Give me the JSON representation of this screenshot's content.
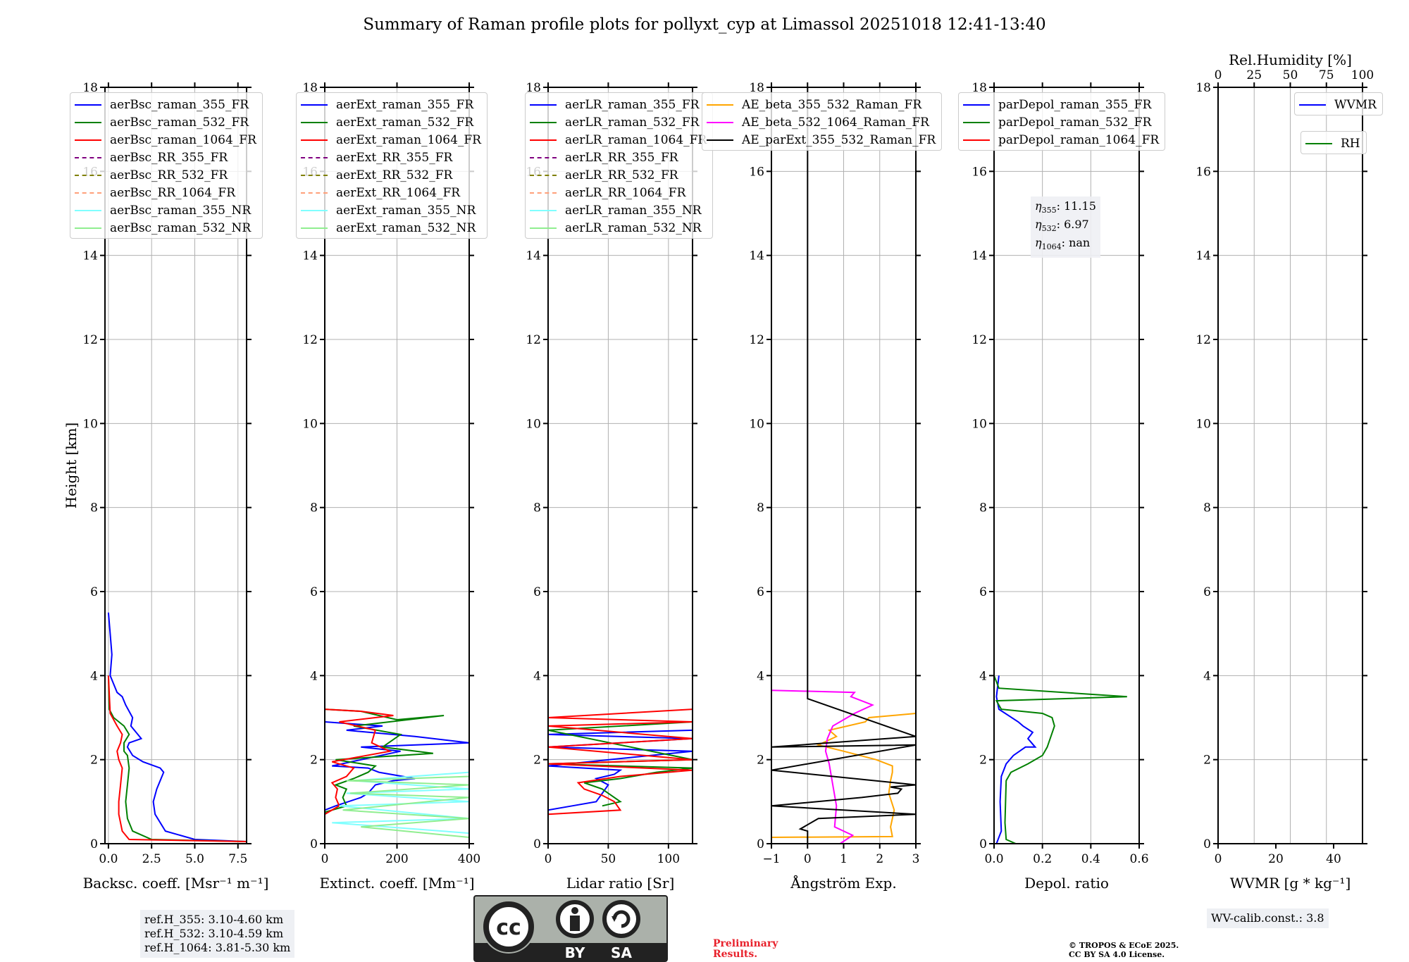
{
  "title": "Summary of Raman profile plots for pollyxt_cyp at Limassol 20251018 12:41-13:40",
  "chart_data": [
    {
      "type": "line",
      "id": "backscatter",
      "xlabel": "Backsc. coeff. [Msr⁻¹ m⁻¹]",
      "ylabel": "Height [km]",
      "xlim": [
        -0.2,
        8.0
      ],
      "ylim": [
        0,
        18
      ],
      "xticks": [
        0.0,
        2.5,
        5.0,
        7.5
      ],
      "xtick_labels": [
        "0.0",
        "2.5",
        "5.0",
        "7.5"
      ],
      "yticks": [
        0,
        2,
        4,
        6,
        8,
        10,
        12,
        14,
        16,
        18
      ],
      "grid": true,
      "legend_position": "top-left",
      "legend": [
        {
          "name": "aerBsc_raman_355_FR",
          "color": "#0000ff",
          "style": "solid"
        },
        {
          "name": "aerBsc_raman_532_FR",
          "color": "#008000",
          "style": "solid"
        },
        {
          "name": "aerBsc_raman_1064_FR",
          "color": "#ff0000",
          "style": "solid"
        },
        {
          "name": "aerBsc_RR_355_FR",
          "color": "#800080",
          "style": "dashed"
        },
        {
          "name": "aerBsc_RR_532_FR",
          "color": "#808000",
          "style": "dashed"
        },
        {
          "name": "aerBsc_RR_1064_FR",
          "color": "#ffa07a",
          "style": "dashed"
        },
        {
          "name": "aerBsc_raman_355_NR",
          "color": "#80ffff",
          "style": "solid"
        },
        {
          "name": "aerBsc_raman_532_NR",
          "color": "#90ee90",
          "style": "solid"
        }
      ],
      "series": [
        {
          "name": "aerBsc_raman_355_FR",
          "color": "#0000ff",
          "x": [
            8.0,
            5.0,
            3.3,
            2.7,
            2.6,
            2.8,
            3.0,
            3.2,
            3.0,
            2.0,
            1.4,
            1.1,
            1.2,
            1.9,
            1.3,
            1.4,
            1.0,
            0.8,
            0.5,
            0.3,
            0.1,
            0.2,
            0.1,
            0.0
          ],
          "y": [
            0.05,
            0.1,
            0.3,
            0.7,
            1.0,
            1.3,
            1.5,
            1.7,
            1.8,
            1.95,
            2.1,
            2.3,
            2.4,
            2.5,
            2.8,
            3.0,
            3.3,
            3.5,
            3.6,
            3.8,
            4.0,
            4.5,
            5.0,
            5.5
          ]
        },
        {
          "name": "aerBsc_raman_532_FR",
          "color": "#008000",
          "x": [
            8.0,
            2.5,
            1.4,
            1.1,
            1.0,
            1.1,
            1.2,
            1.1,
            0.9,
            0.9,
            1.2,
            0.9,
            0.3,
            0.05,
            0.0
          ],
          "y": [
            0.05,
            0.1,
            0.3,
            0.6,
            1.0,
            1.4,
            1.8,
            2.1,
            2.2,
            2.4,
            2.6,
            2.8,
            3.0,
            3.2,
            4.0
          ]
        },
        {
          "name": "aerBsc_raman_1064_FR",
          "color": "#ff0000",
          "x": [
            8.0,
            1.2,
            0.8,
            0.6,
            0.6,
            0.7,
            0.8,
            0.6,
            0.5,
            0.7,
            0.8,
            0.5,
            0.1,
            0.0
          ],
          "y": [
            0.05,
            0.1,
            0.3,
            0.7,
            1.0,
            1.4,
            1.8,
            2.0,
            2.2,
            2.4,
            2.6,
            2.8,
            3.1,
            4.0
          ]
        }
      ],
      "annotation": [
        "ref.H_355: 3.10-4.60 km",
        "ref.H_532: 3.10-4.59 km",
        "ref.H_1064: 3.81-5.30 km"
      ]
    },
    {
      "type": "line",
      "id": "extinction",
      "xlabel": "Extinct. coeff. [Mm⁻¹]",
      "xlim": [
        0,
        400
      ],
      "ylim": [
        0,
        18
      ],
      "xticks": [
        0,
        200,
        400
      ],
      "xtick_labels": [
        "0",
        "200",
        "400"
      ],
      "yticks": [
        0,
        2,
        4,
        6,
        8,
        10,
        12,
        14,
        16,
        18
      ],
      "grid": true,
      "legend_position": "top-left",
      "legend": [
        {
          "name": "aerExt_raman_355_FR",
          "color": "#0000ff",
          "style": "solid"
        },
        {
          "name": "aerExt_raman_532_FR",
          "color": "#008000",
          "style": "solid"
        },
        {
          "name": "aerExt_raman_1064_FR",
          "color": "#ff0000",
          "style": "solid"
        },
        {
          "name": "aerExt_RR_355_FR",
          "color": "#800080",
          "style": "dashed"
        },
        {
          "name": "aerExt_RR_532_FR",
          "color": "#808000",
          "style": "dashed"
        },
        {
          "name": "aerExt_RR_1064_FR",
          "color": "#ffa07a",
          "style": "dashed"
        },
        {
          "name": "aerExt_raman_355_NR",
          "color": "#80ffff",
          "style": "solid"
        },
        {
          "name": "aerExt_raman_532_NR",
          "color": "#90ee90",
          "style": "solid"
        }
      ],
      "series": [
        {
          "name": "aerExt_raman_355_FR",
          "color": "#0000ff",
          "x": [
            0,
            30,
            100,
            120,
            140,
            190,
            250,
            150,
            120,
            20,
            210,
            100,
            400,
            250,
            60,
            160,
            0
          ],
          "y": [
            0.8,
            0.9,
            1.1,
            1.2,
            1.4,
            1.5,
            1.55,
            1.7,
            1.8,
            1.85,
            2.2,
            2.3,
            2.4,
            2.55,
            2.7,
            2.8,
            2.9
          ]
        },
        {
          "name": "aerExt_raman_532_FR",
          "color": "#008000",
          "x": [
            0,
            60,
            50,
            60,
            30,
            80,
            120,
            140,
            30,
            300,
            160,
            210,
            80,
            330,
            200,
            100,
            0
          ],
          "y": [
            0.75,
            0.9,
            1.1,
            1.3,
            1.4,
            1.55,
            1.7,
            1.85,
            2.0,
            2.15,
            2.3,
            2.6,
            2.8,
            3.05,
            2.95,
            3.15,
            3.2
          ]
        },
        {
          "name": "aerExt_raman_1064_FR",
          "color": "#ff0000",
          "x": [
            0,
            40,
            30,
            35,
            20,
            60,
            80,
            20,
            180,
            130,
            140,
            40,
            190,
            100,
            0
          ],
          "y": [
            0.7,
            0.9,
            1.1,
            1.3,
            1.45,
            1.6,
            1.8,
            1.95,
            2.2,
            2.4,
            2.7,
            2.9,
            3.05,
            3.15,
            3.2
          ]
        },
        {
          "name": "aerExt_raman_355_NR",
          "color": "#80ffff",
          "x": [
            400,
            20,
            400,
            40,
            400,
            60,
            400,
            80,
            400
          ],
          "y": [
            0.25,
            0.5,
            0.6,
            0.9,
            1.0,
            1.2,
            1.3,
            1.5,
            1.7
          ]
        },
        {
          "name": "aerExt_raman_532_NR",
          "color": "#90ee90",
          "x": [
            400,
            100,
            400,
            50,
            400,
            70,
            400,
            60,
            400
          ],
          "y": [
            0.15,
            0.4,
            0.6,
            0.8,
            1.1,
            1.2,
            1.4,
            1.5,
            1.6
          ]
        }
      ]
    },
    {
      "type": "line",
      "id": "lidar-ratio",
      "xlabel": "Lidar ratio [Sr]",
      "xlim": [
        0,
        120
      ],
      "ylim": [
        0,
        18
      ],
      "xticks": [
        0,
        50,
        100
      ],
      "xtick_labels": [
        "0",
        "50",
        "100"
      ],
      "yticks": [
        0,
        2,
        4,
        6,
        8,
        10,
        12,
        14,
        16,
        18
      ],
      "grid": true,
      "legend_position": "top-left",
      "legend": [
        {
          "name": "aerLR_raman_355_FR",
          "color": "#0000ff",
          "style": "solid"
        },
        {
          "name": "aerLR_raman_532_FR",
          "color": "#008000",
          "style": "solid"
        },
        {
          "name": "aerLR_raman_1064_FR",
          "color": "#ff0000",
          "style": "solid"
        },
        {
          "name": "aerLR_RR_355_FR",
          "color": "#800080",
          "style": "dashed"
        },
        {
          "name": "aerLR_RR_532_FR",
          "color": "#808000",
          "style": "dashed"
        },
        {
          "name": "aerLR_RR_1064_FR",
          "color": "#ffa07a",
          "style": "dashed"
        },
        {
          "name": "aerLR_raman_355_NR",
          "color": "#80ffff",
          "style": "solid"
        },
        {
          "name": "aerLR_raman_532_NR",
          "color": "#90ee90",
          "style": "solid"
        }
      ],
      "series": [
        {
          "name": "aerLR_raman_355_FR",
          "color": "#0000ff",
          "x": [
            0,
            20,
            40,
            45,
            50,
            40,
            55,
            60,
            30,
            0,
            120,
            0,
            120,
            0,
            120
          ],
          "y": [
            0.8,
            0.9,
            1.0,
            1.2,
            1.4,
            1.55,
            1.65,
            1.75,
            1.8,
            1.85,
            2.2,
            2.3,
            2.5,
            2.6,
            2.7
          ]
        },
        {
          "name": "aerLR_raman_532_FR",
          "color": "#008000",
          "x": [
            45,
            60,
            50,
            45,
            30,
            60,
            90,
            120,
            0,
            120,
            0,
            120
          ],
          "y": [
            0.9,
            1.0,
            1.2,
            1.3,
            1.45,
            1.55,
            1.7,
            1.8,
            1.9,
            2.0,
            2.7,
            2.9
          ]
        },
        {
          "name": "aerLR_raman_1064_FR",
          "color": "#ff0000",
          "x": [
            0,
            60,
            55,
            45,
            30,
            25,
            60,
            120,
            0,
            120,
            0,
            120,
            0,
            120,
            0,
            120
          ],
          "y": [
            0.7,
            0.8,
            1.0,
            1.15,
            1.3,
            1.45,
            1.6,
            1.75,
            1.9,
            2.0,
            2.3,
            2.5,
            2.8,
            2.9,
            3.0,
            3.2
          ]
        }
      ]
    },
    {
      "type": "line",
      "id": "angstrom",
      "xlabel": "Ångström Exp.",
      "xlim": [
        -1,
        3
      ],
      "ylim": [
        0,
        18
      ],
      "xticks": [
        -1,
        0,
        1,
        2,
        3
      ],
      "xtick_labels": [
        "−1",
        "0",
        "1",
        "2",
        "3"
      ],
      "yticks": [
        0,
        2,
        4,
        6,
        8,
        10,
        12,
        14,
        16,
        18
      ],
      "grid": true,
      "legend_position": "top",
      "legend": [
        {
          "name": "AE_beta_355_532_Raman_FR",
          "color": "#ffa500",
          "style": "solid"
        },
        {
          "name": "AE_beta_532_1064_Raman_FR",
          "color": "#ff00ff",
          "style": "solid"
        },
        {
          "name": "AE_parExt_355_532_Raman_FR",
          "color": "#000000",
          "style": "solid"
        }
      ],
      "series": [
        {
          "name": "AE_beta_355_532_Raman_FR",
          "color": "#ffa500",
          "x": [
            -1,
            2.35,
            2.3,
            2.4,
            2.25,
            2.3,
            2.35,
            2.35,
            1.9,
            1.0,
            0.3,
            0.8,
            0.6,
            1.6,
            1.7,
            3.0
          ],
          "y": [
            0.15,
            0.17,
            0.4,
            0.8,
            1.2,
            1.5,
            1.7,
            1.85,
            2.0,
            2.2,
            2.35,
            2.55,
            2.7,
            2.9,
            3.0,
            3.1
          ]
        },
        {
          "name": "AE_beta_532_1064_Raman_FR",
          "color": "#ff00ff",
          "x": [
            0.9,
            1.25,
            0.75,
            0.8,
            0.7,
            0.6,
            0.5,
            0.55,
            0.7,
            1.3,
            1.8,
            1.2,
            1.3,
            -1
          ],
          "y": [
            0.0,
            0.2,
            0.4,
            0.9,
            1.4,
            1.9,
            2.2,
            2.5,
            2.8,
            3.1,
            3.3,
            3.5,
            3.6,
            3.65
          ]
        },
        {
          "name": "AE_parExt_355_532_Raman_FR",
          "color": "#000000",
          "x": [
            0,
            0,
            -0.2,
            0.3,
            3.0,
            -1,
            1.5,
            2.5,
            2.6,
            2.3,
            3.0,
            -1,
            3.0,
            -1,
            3.0,
            0,
            0
          ],
          "y": [
            0,
            0.3,
            0.35,
            0.6,
            0.7,
            0.9,
            1.1,
            1.2,
            1.3,
            1.35,
            1.4,
            1.75,
            2.35,
            2.3,
            2.55,
            3.45,
            18
          ]
        }
      ]
    },
    {
      "type": "line",
      "id": "depolarization",
      "xlabel": "Depol. ratio",
      "xlim": [
        0.0,
        0.6
      ],
      "ylim": [
        0,
        18
      ],
      "xticks": [
        0.0,
        0.2,
        0.4,
        0.6
      ],
      "xtick_labels": [
        "0.0",
        "0.2",
        "0.4",
        "0.6"
      ],
      "yticks": [
        0,
        2,
        4,
        6,
        8,
        10,
        12,
        14,
        16,
        18
      ],
      "grid": true,
      "legend_position": "top-left",
      "legend": [
        {
          "name": "parDepol_raman_355_FR",
          "color": "#0000ff",
          "style": "solid"
        },
        {
          "name": "parDepol_raman_532_FR",
          "color": "#008000",
          "style": "solid"
        },
        {
          "name": "parDepol_raman_1064_FR",
          "color": "#ff0000",
          "style": "solid"
        }
      ],
      "series": [
        {
          "name": "parDepol_raman_355_FR",
          "color": "#0000ff",
          "x": [
            0.01,
            0.03,
            0.025,
            0.03,
            0.05,
            0.08,
            0.13,
            0.17,
            0.14,
            0.16,
            0.12,
            0.1,
            0.02,
            0.01,
            0.02
          ],
          "y": [
            0.0,
            0.3,
            1.0,
            1.6,
            1.9,
            2.1,
            2.3,
            2.3,
            2.5,
            2.65,
            2.8,
            2.9,
            3.2,
            3.5,
            4.0
          ]
        },
        {
          "name": "parDepol_raman_532_FR",
          "color": "#008000",
          "x": [
            0.09,
            0.05,
            0.045,
            0.05,
            0.07,
            0.14,
            0.2,
            0.22,
            0.25,
            0.24,
            0.2,
            0.03,
            0.01,
            0.55,
            0.02,
            0.0
          ],
          "y": [
            0.0,
            0.1,
            0.5,
            1.5,
            1.7,
            1.9,
            2.1,
            2.3,
            2.8,
            3.0,
            3.1,
            3.2,
            3.4,
            3.5,
            3.7,
            4.0
          ]
        }
      ],
      "annotation": [
        "η355: 11.15",
        "η532: 6.97",
        "η1064: nan"
      ]
    },
    {
      "type": "line",
      "id": "water-vapor",
      "xlabel": "WVMR [g * kg⁻¹]",
      "x2label": "Rel.Humidity [%]",
      "xlim": [
        0,
        50
      ],
      "x2lim": [
        0,
        100
      ],
      "ylim": [
        0,
        18
      ],
      "xticks": [
        0,
        20,
        40
      ],
      "xtick_labels": [
        "0",
        "20",
        "40"
      ],
      "x2ticks": [
        0,
        25,
        50,
        75,
        100
      ],
      "x2tick_labels": [
        "0",
        "25",
        "50",
        "75",
        "100"
      ],
      "yticks": [
        0,
        2,
        4,
        6,
        8,
        10,
        12,
        14,
        16,
        18
      ],
      "grid": true,
      "legend": [
        {
          "name": "WVMR",
          "color": "#0000ff",
          "style": "solid"
        },
        {
          "name": "RH",
          "color": "#008000",
          "style": "solid"
        }
      ],
      "series": [],
      "annotation": [
        "WV-calib.const.: 3.8"
      ]
    }
  ],
  "footer": {
    "preliminary": [
      "Preliminary",
      "Results."
    ],
    "copyright": [
      "© TROPOS & ECoE 2025.",
      "CC BY SA 4.0 License."
    ],
    "cc_badge": {
      "cc": "cc",
      "by": "BY",
      "sa": "SA"
    }
  },
  "ytick_label_text": [
    "0",
    "2",
    "4",
    "6",
    "8",
    "10",
    "12",
    "14",
    "16",
    "18"
  ]
}
